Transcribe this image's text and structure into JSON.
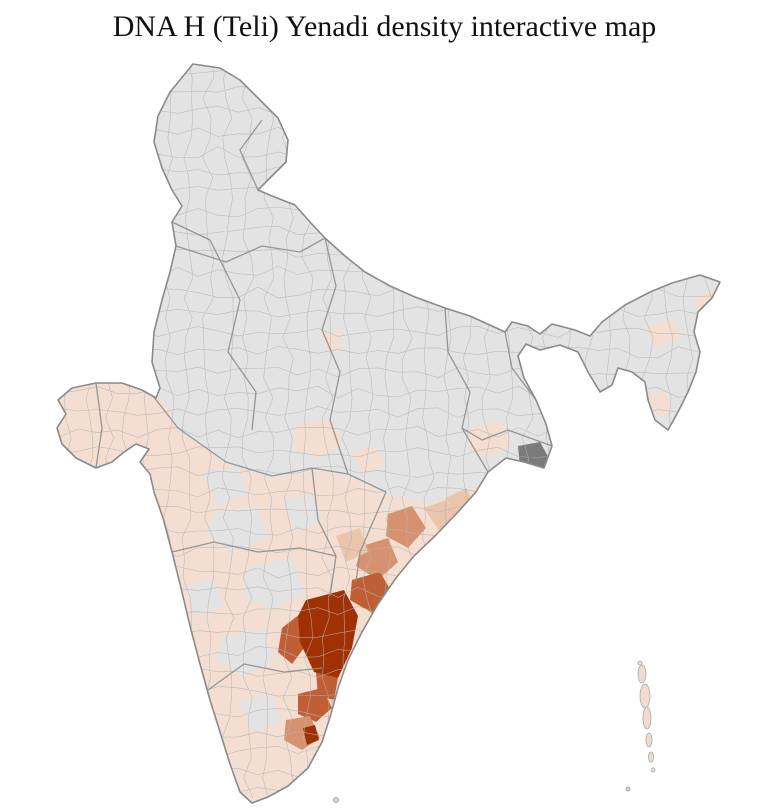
{
  "page": {
    "title": "DNA H (Teli) Yenadi density interactive map"
  },
  "map": {
    "colors": {
      "background": "#ffffff",
      "no_data": "#e3e3e3",
      "low": "#f3ded1",
      "medium_low": "#eac4ab",
      "medium": "#d69270",
      "high": "#c05f35",
      "very_high": "#a03104",
      "dark_gray": "#7b7b7b",
      "district_border": "#b4b4b4",
      "state_border": "#8d8d8d",
      "outline": "#8a8a8a",
      "island_fill": "#efdccf"
    },
    "density_scale": [
      "#e3e3e3",
      "#f3ded1",
      "#eac4ab",
      "#d69270",
      "#c05f35",
      "#a03104"
    ]
  }
}
